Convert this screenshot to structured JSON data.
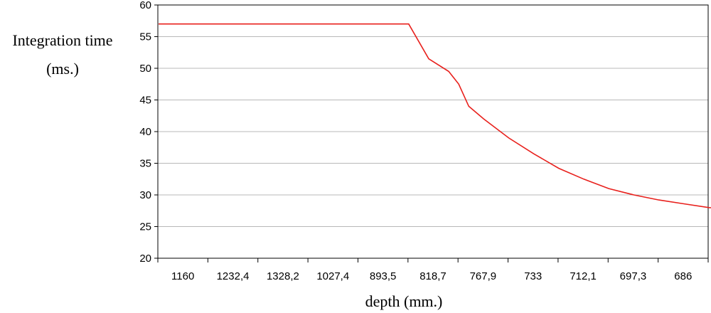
{
  "chart_data": {
    "type": "line",
    "title": "",
    "ylabel_line1": "Integration time",
    "ylabel_line2": "(ms.)",
    "xlabel": "depth (mm.)",
    "ylim": [
      20,
      60
    ],
    "yticks": [
      20,
      25,
      30,
      35,
      40,
      45,
      50,
      55,
      60
    ],
    "y_gridlines": true,
    "x_tick_labels": [
      "1160",
      "1232,4",
      "1328,2",
      "1027,4",
      "893,5",
      "818,7",
      "767,9",
      "733",
      "712,1",
      "697,3",
      "686"
    ],
    "series": [
      {
        "color": "#e8201c",
        "x_index": [
          0,
          1,
          2,
          3,
          4,
          5,
          5.4,
          5.8,
          6,
          6.2,
          6.5,
          7,
          7.5,
          8,
          8.5,
          9,
          9.5,
          10,
          10.5,
          11,
          11.8
        ],
        "values": [
          57,
          57,
          57,
          57,
          57,
          57,
          51.5,
          49.5,
          47.5,
          44,
          42,
          39,
          36.5,
          34.2,
          32.5,
          31,
          30,
          29.2,
          28.6,
          28,
          27.6
        ]
      }
    ]
  }
}
